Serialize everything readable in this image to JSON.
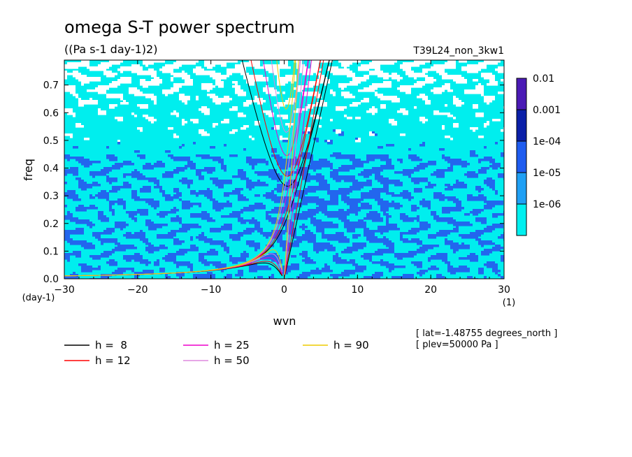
{
  "chart_data": {
    "type": "heatmap",
    "title": "omega S-T power spectrum",
    "subtitle": "((Pa s-1 day-1)2)",
    "run_label": "T39L24_non_3kw1",
    "xlabel": "wvn",
    "ylabel": "freq",
    "x_unit": "(1)",
    "y_unit": "(day-1)",
    "xlim": [
      -30,
      30
    ],
    "ylim": [
      0,
      0.79
    ],
    "x_ticks": [
      "−30",
      "−20",
      "−10",
      "0",
      "10",
      "20",
      "30"
    ],
    "x_tick_values": [
      -30,
      -20,
      -10,
      0,
      10,
      20,
      30
    ],
    "y_ticks": [
      "0.0",
      "0.1",
      "0.2",
      "0.3",
      "0.4",
      "0.5",
      "0.6",
      "0.7"
    ],
    "y_tick_values": [
      0,
      0.1,
      0.2,
      0.3,
      0.4,
      0.5,
      0.6,
      0.7
    ],
    "colorbar": {
      "labels": [
        "0.01",
        "0.001",
        "1e-04",
        "1e-05",
        "1e-06"
      ],
      "colors": [
        "#4a1ab5",
        "#0a1fa8",
        "#1e5cf0",
        "#1fa0f5",
        "#00f0f0"
      ]
    },
    "field_colors": {
      "below": "#ffffff",
      "level1": "#00eeee",
      "level2": "#2266ee"
    },
    "dispersion_curves": [
      {
        "name": "h =  8",
        "color": "#000000",
        "equivalent_depth_m": 8
      },
      {
        "name": "h = 12",
        "color": "#ff0000",
        "equivalent_depth_m": 12
      },
      {
        "name": "h = 25",
        "color": "#ee00cc",
        "equivalent_depth_m": 25
      },
      {
        "name": "h = 50",
        "color": "#dd88dd",
        "equivalent_depth_m": 50
      },
      {
        "name": "h = 90",
        "color": "#eecc00",
        "equivalent_depth_m": 90
      }
    ],
    "annotations": [
      "[ lat=-1.48755 degrees_north ]",
      "[ plev=50000 Pa ]"
    ]
  }
}
